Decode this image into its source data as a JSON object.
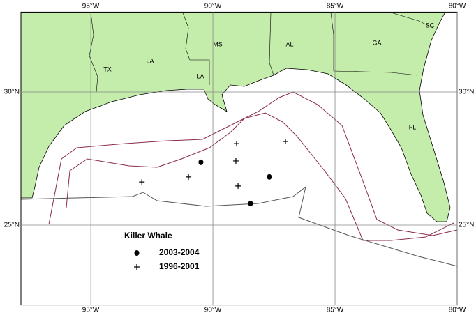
{
  "map": {
    "title": "Killer Whale",
    "xlim": [
      -97.86,
      -80
    ],
    "ylim": [
      22,
      33
    ],
    "xticks": [
      {
        "value": -95,
        "label": "95°W"
      },
      {
        "value": -90,
        "label": "90°W"
      },
      {
        "value": -85,
        "label": "85°W"
      },
      {
        "value": -80,
        "label": "80°W"
      }
    ],
    "yticks": [
      {
        "value": 30,
        "label": "30°N"
      },
      {
        "value": 25,
        "label": "25°N"
      }
    ],
    "regions": [
      "TX",
      "LA",
      "LA",
      "MS",
      "AL",
      "GA",
      "SC",
      "FL"
    ],
    "series": [
      {
        "name": "2003-2004",
        "marker": "dot",
        "lon": [
          -90.49,
          -87.69,
          -88.46
        ],
        "lat": [
          27.36,
          26.81,
          25.81
        ]
      },
      {
        "name": "1996-2001",
        "marker": "plus",
        "lon": [
          -89.03,
          -87.03,
          -89.06,
          -91.0,
          -92.91,
          -88.97
        ],
        "lat": [
          28.06,
          28.14,
          27.41,
          26.81,
          26.62,
          26.47
        ]
      }
    ]
  }
}
